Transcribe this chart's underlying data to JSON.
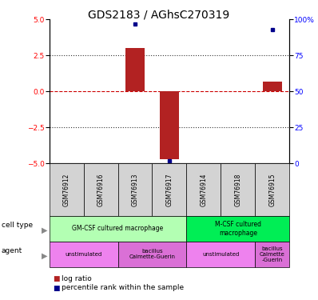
{
  "title": "GDS2183 / AGhsC270319",
  "samples": [
    "GSM76912",
    "GSM76916",
    "GSM76913",
    "GSM76917",
    "GSM76914",
    "GSM76918",
    "GSM76915"
  ],
  "log_ratio": [
    0,
    0,
    3.0,
    -4.7,
    0,
    0,
    0.7
  ],
  "percentile_rank": [
    null,
    null,
    97,
    2,
    null,
    null,
    93
  ],
  "ylim": [
    -5,
    5
  ],
  "yticks_left": [
    -5,
    -2.5,
    0,
    2.5,
    5
  ],
  "yticks_right": [
    0,
    25,
    50,
    75,
    100
  ],
  "bar_color": "#b22222",
  "dot_color": "#00008b",
  "dashed_color": "#cc0000",
  "dotted_color": "#333333",
  "cell_type_groups": [
    {
      "label": "GM-CSF cultured macrophage",
      "start": 0,
      "end": 4,
      "color": "#b3ffb3"
    },
    {
      "label": "M-CSF cultured\nmacrophage",
      "start": 4,
      "end": 7,
      "color": "#00ee55"
    }
  ],
  "agent_groups": [
    {
      "label": "unstimulated",
      "start": 0,
      "end": 2,
      "color": "#ee82ee"
    },
    {
      "label": "bacillus\nCalmette-Guerin",
      "start": 2,
      "end": 4,
      "color": "#da70d6"
    },
    {
      "label": "unstimulated",
      "start": 4,
      "end": 6,
      "color": "#ee82ee"
    },
    {
      "label": "bacillus\nCalmette\n-Guerin",
      "start": 6,
      "end": 7,
      "color": "#da70d6"
    }
  ],
  "tick_label_fontsize": 6.5,
  "title_fontsize": 10,
  "bar_width": 0.55,
  "sample_bg_color": "#d3d3d3"
}
